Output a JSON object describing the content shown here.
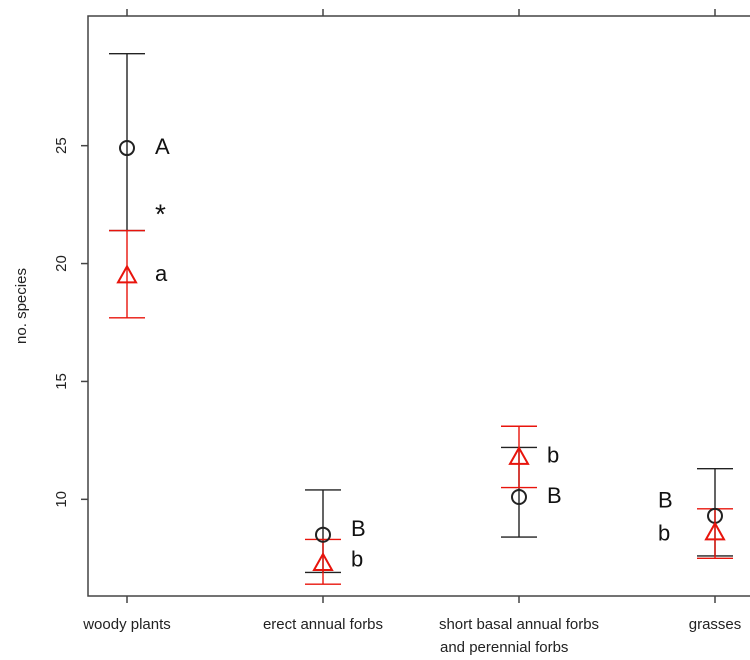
{
  "chart_data": {
    "type": "scatter",
    "title": "",
    "xlabel": "",
    "ylabel": "no. species",
    "categories": [
      "woody plants",
      "erect annual forbs",
      "short basal annual forbs|and perennial forbs",
      "grasses"
    ],
    "ylim": [
      5.9,
      30.5
    ],
    "yticks": [
      10,
      15,
      20,
      25
    ],
    "grid": false,
    "colors": {
      "black": "#222222",
      "red": "#e8140c"
    },
    "series": [
      {
        "marker": "circle",
        "color": "#222222",
        "values": [
          24.9,
          8.5,
          10.1,
          9.3
        ],
        "lower": [
          21.4,
          6.9,
          8.4,
          7.6
        ],
        "upper": [
          28.9,
          10.4,
          12.2,
          11.3
        ]
      },
      {
        "marker": "triangle",
        "color": "#e8140c",
        "values": [
          19.5,
          7.3,
          11.8,
          8.6
        ],
        "lower": [
          17.7,
          6.4,
          10.5,
          7.5
        ],
        "upper": [
          21.4,
          8.3,
          13.1,
          9.6
        ]
      }
    ],
    "annotations": [
      {
        "text": "A",
        "category": 0,
        "y": 24.9,
        "side": "right"
      },
      {
        "text": "*",
        "category": 0,
        "y": 22.1,
        "side": "right"
      },
      {
        "text": "a",
        "category": 0,
        "y": 19.5,
        "side": "right"
      },
      {
        "text": "B",
        "category": 1,
        "y": 8.7,
        "side": "right"
      },
      {
        "text": "b",
        "category": 1,
        "y": 7.4,
        "side": "right"
      },
      {
        "text": "b",
        "category": 2,
        "y": 11.8,
        "side": "right"
      },
      {
        "text": "B",
        "category": 2,
        "y": 10.1,
        "side": "right"
      },
      {
        "text": "B",
        "category": 3,
        "y": 9.9,
        "side": "left"
      },
      {
        "text": "b",
        "category": 3,
        "y": 8.5,
        "side": "left"
      }
    ]
  }
}
